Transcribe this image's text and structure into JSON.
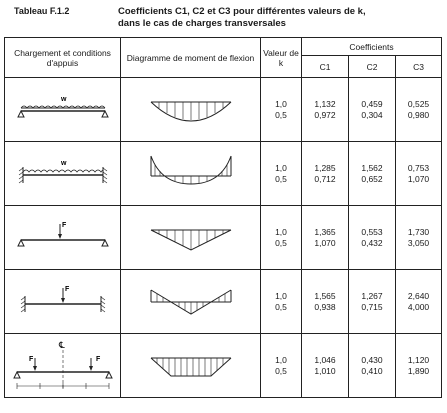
{
  "table": {
    "name": "Tableau F.1.2",
    "title_line1": "Coefficients C1, C2 et C3 pour différentes valeurs de k,",
    "title_line2": "dans le cas de charges transversales",
    "col_loading": "Chargement et conditions d'appuis",
    "col_diagram": "Diagramme de moment de flexion",
    "col_k": "Valeur de k",
    "col_coeffs": "Coefficients",
    "c1": "C1",
    "c2": "C2",
    "c3": "C3"
  },
  "rows": [
    {
      "load_label": "w",
      "k1": "1,0",
      "k2": "0,5",
      "c1a": "1,132",
      "c1b": "0,972",
      "c2a": "0,459",
      "c2b": "0,304",
      "c3a": "0,525",
      "c3b": "0,980"
    },
    {
      "load_label": "w",
      "k1": "1,0",
      "k2": "0,5",
      "c1a": "1,285",
      "c1b": "0,712",
      "c2a": "1,562",
      "c2b": "0,652",
      "c3a": "0,753",
      "c3b": "1,070"
    },
    {
      "load_label": "F",
      "k1": "1,0",
      "k2": "0,5",
      "c1a": "1,365",
      "c1b": "1,070",
      "c2a": "0,553",
      "c2b": "0,432",
      "c3a": "1,730",
      "c3b": "3,050"
    },
    {
      "load_label": "F",
      "k1": "1,0",
      "k2": "0,5",
      "c1a": "1,565",
      "c1b": "0,938",
      "c2a": "1,267",
      "c2b": "0,715",
      "c3a": "2,640",
      "c3b": "4,000"
    },
    {
      "load_label": "F",
      "k1": "1,0",
      "k2": "0,5",
      "c1a": "1,046",
      "c1b": "1,010",
      "c2a": "0,430",
      "c2b": "0,410",
      "c3a": "1,120",
      "c3b": "1,890",
      "axis_label": "℄"
    }
  ]
}
